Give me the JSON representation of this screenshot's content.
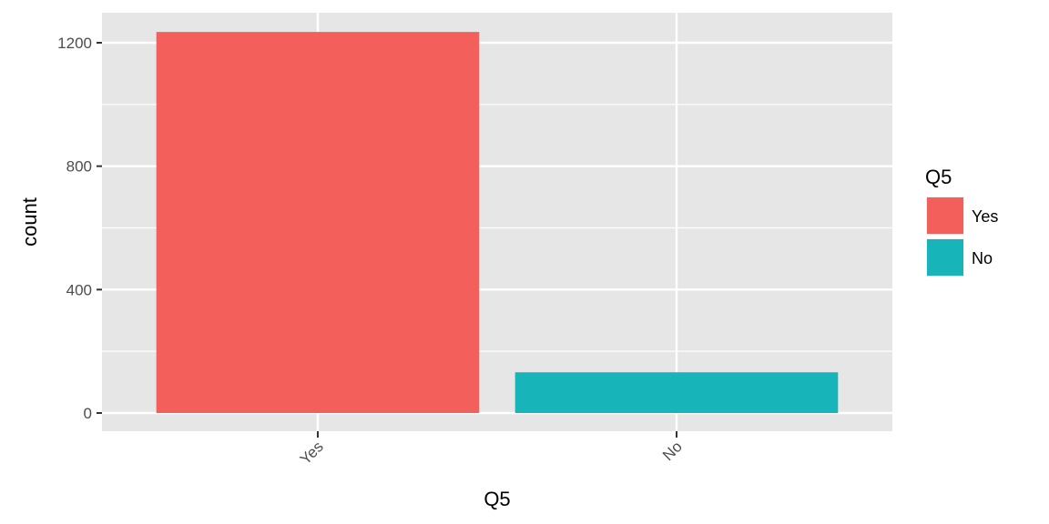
{
  "chart_data": {
    "type": "bar",
    "categories": [
      "Yes",
      "No"
    ],
    "values": [
      1235,
      132
    ],
    "colors": [
      "#F35F5B",
      "#17B4B9"
    ],
    "xlabel": "Q5",
    "ylabel": "count",
    "ylim": [
      0,
      1285
    ],
    "yticks": [
      0,
      400,
      800,
      1200
    ],
    "yminor": [
      200,
      600,
      1000
    ],
    "xtick_rotation": -45,
    "grid": true,
    "panel_background": "#E6E6E6",
    "gridline_color": "#FFFFFF",
    "legend": {
      "title": "Q5",
      "position": "right",
      "items": [
        {
          "label": "Yes",
          "color": "#F35F5B"
        },
        {
          "label": "No",
          "color": "#17B4B9"
        }
      ]
    }
  }
}
